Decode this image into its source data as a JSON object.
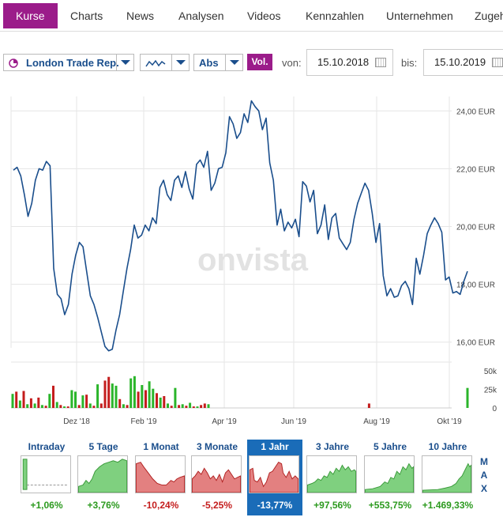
{
  "tabs": [
    {
      "label": "Kurse",
      "active": true
    },
    {
      "label": "Charts"
    },
    {
      "label": "News"
    },
    {
      "label": "Analysen"
    },
    {
      "label": "Videos"
    },
    {
      "label": "Kennzahlen"
    },
    {
      "label": "Unternehmen"
    },
    {
      "label": "Zugeh"
    }
  ],
  "toolbar": {
    "instrument": "London Trade Rep.",
    "chart_type_icon": "line-chart-icon",
    "scale": "Abs",
    "vol_label": "Vol.",
    "from_label": "von:",
    "from_date": "15.10.2018",
    "to_label": "bis:",
    "to_date": "15.10.2019"
  },
  "watermark": "onvista",
  "colors": {
    "accent": "#9b1c8a",
    "line": "#1a4e8c",
    "vol_up": "#2ab52a",
    "vol_down": "#c41d1d",
    "selected_period": "#1a6cb8"
  },
  "chart_data": {
    "type": "line",
    "currency": "EUR",
    "yticks": [
      "24,00 EUR",
      "22,00 EUR",
      "20,00 EUR",
      "18,00 EUR",
      "16,00 EUR"
    ],
    "ylim": [
      15.8,
      24.5
    ],
    "xticks": [
      "Dez '18",
      "Feb '19",
      "Apr '19",
      "Jun '19",
      "Aug '19",
      "Okt '19"
    ],
    "volume_ticks": [
      "50k",
      "25k",
      "0"
    ],
    "volume_ylim": [
      0,
      62
    ],
    "price": [
      21.95,
      22.05,
      21.75,
      21.1,
      20.35,
      20.8,
      21.6,
      22.0,
      21.95,
      22.25,
      22.1,
      18.55,
      17.65,
      17.5,
      16.95,
      17.3,
      18.35,
      19.0,
      19.45,
      19.3,
      18.45,
      17.6,
      17.3,
      16.85,
      16.35,
      15.85,
      15.7,
      15.75,
      16.4,
      16.95,
      17.75,
      18.55,
      19.2,
      20.05,
      19.6,
      19.7,
      20.05,
      19.85,
      20.3,
      20.1,
      21.35,
      21.6,
      21.1,
      20.9,
      21.6,
      21.75,
      21.35,
      21.9,
      21.3,
      20.95,
      22.15,
      22.3,
      22.05,
      22.6,
      21.25,
      21.5,
      22.0,
      22.05,
      22.55,
      23.8,
      23.55,
      23.05,
      23.25,
      23.9,
      23.6,
      24.35,
      24.15,
      24.0,
      23.35,
      23.75,
      22.2,
      21.6,
      20.05,
      20.6,
      19.85,
      20.15,
      19.95,
      20.25,
      19.65,
      21.55,
      21.4,
      20.85,
      21.25,
      19.75,
      20.05,
      20.75,
      19.55,
      20.3,
      20.45,
      19.6,
      19.4,
      19.2,
      19.45,
      20.25,
      20.8,
      21.15,
      21.5,
      21.25,
      20.45,
      19.45,
      20.1,
      18.3,
      17.6,
      17.85,
      17.55,
      17.6,
      17.95,
      18.1,
      17.85,
      17.3,
      18.9,
      18.35,
      19.0,
      19.75,
      20.05,
      20.3,
      20.1,
      19.8,
      18.15,
      18.25,
      17.7,
      17.75,
      17.65,
      18.1,
      18.45
    ],
    "volume": [
      {
        "v": 19,
        "up": true
      },
      {
        "v": 22,
        "up": false
      },
      {
        "v": 10,
        "up": true
      },
      {
        "v": 23,
        "up": false
      },
      {
        "v": 5,
        "up": true
      },
      {
        "v": 13,
        "up": false
      },
      {
        "v": 6,
        "up": true
      },
      {
        "v": 14,
        "up": false
      },
      {
        "v": 4,
        "up": true
      },
      {
        "v": 3,
        "up": false
      },
      {
        "v": 19,
        "up": true
      },
      {
        "v": 30,
        "up": false
      },
      {
        "v": 8,
        "up": true
      },
      {
        "v": 4,
        "up": false
      },
      {
        "v": 2,
        "up": true
      },
      {
        "v": 2,
        "up": false
      },
      {
        "v": 24,
        "up": true
      },
      {
        "v": 22,
        "up": true
      },
      {
        "v": 4,
        "up": false
      },
      {
        "v": 17,
        "up": true
      },
      {
        "v": 18,
        "up": false
      },
      {
        "v": 6,
        "up": true
      },
      {
        "v": 3,
        "up": false
      },
      {
        "v": 32,
        "up": true
      },
      {
        "v": 6,
        "up": false
      },
      {
        "v": 37,
        "up": false
      },
      {
        "v": 42,
        "up": false
      },
      {
        "v": 33,
        "up": true
      },
      {
        "v": 30,
        "up": true
      },
      {
        "v": 12,
        "up": false
      },
      {
        "v": 5,
        "up": true
      },
      {
        "v": 4,
        "up": false
      },
      {
        "v": 40,
        "up": true
      },
      {
        "v": 43,
        "up": true
      },
      {
        "v": 22,
        "up": false
      },
      {
        "v": 31,
        "up": true
      },
      {
        "v": 24,
        "up": false
      },
      {
        "v": 36,
        "up": true
      },
      {
        "v": 26,
        "up": true
      },
      {
        "v": 20,
        "up": false
      },
      {
        "v": 14,
        "up": true
      },
      {
        "v": 16,
        "up": false
      },
      {
        "v": 6,
        "up": true
      },
      {
        "v": 3,
        "up": false
      },
      {
        "v": 27,
        "up": true
      },
      {
        "v": 4,
        "up": false
      },
      {
        "v": 5,
        "up": true
      },
      {
        "v": 3,
        "up": false
      },
      {
        "v": 7,
        "up": true
      },
      {
        "v": 2,
        "up": false
      },
      {
        "v": 2,
        "up": true
      },
      {
        "v": 4,
        "up": false
      },
      {
        "v": 6,
        "up": false
      },
      {
        "v": 5,
        "up": true
      }
    ],
    "volume_late": [
      {
        "v": 6,
        "up": false,
        "pos": 0.62
      },
      {
        "v": 27,
        "up": true,
        "pos": 1.0
      }
    ]
  },
  "periods": [
    {
      "label": "Intraday",
      "change": "+1,06%",
      "positive": true,
      "active": false
    },
    {
      "label": "5 Tage",
      "change": "+3,76%",
      "positive": true,
      "active": false
    },
    {
      "label": "1 Monat",
      "change": "-10,24%",
      "positive": false,
      "active": false
    },
    {
      "label": "3 Monate",
      "change": "-5,25%",
      "positive": false,
      "active": false
    },
    {
      "label": "1 Jahr",
      "change": "-13,77%",
      "positive": false,
      "active": true
    },
    {
      "label": "3 Jahre",
      "change": "+97,56%",
      "positive": true,
      "active": false
    },
    {
      "label": "5 Jahre",
      "change": "+553,75%",
      "positive": true,
      "active": false
    },
    {
      "label": "10 Jahre",
      "change": "+1.469,33%",
      "positive": true,
      "active": false
    }
  ],
  "max_label": [
    "M",
    "A",
    "X"
  ]
}
